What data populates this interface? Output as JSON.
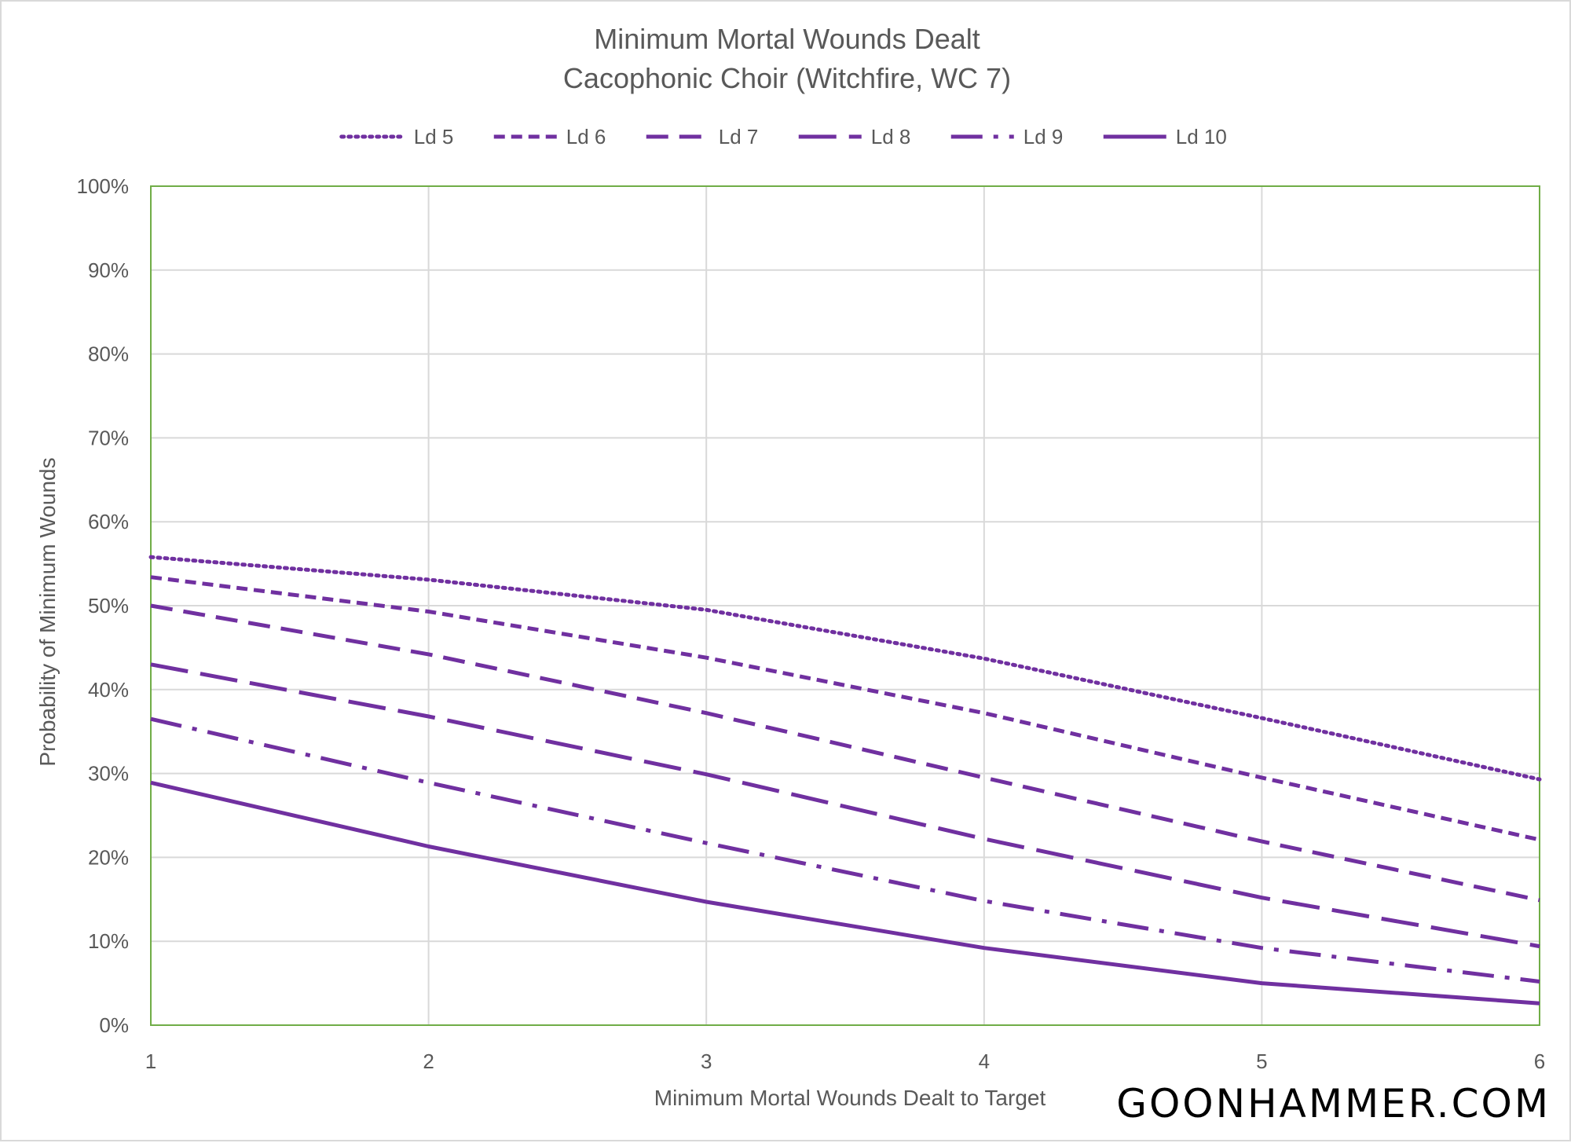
{
  "chart_data": {
    "type": "line",
    "title": "Minimum Mortal Wounds Dealt",
    "subtitle": "Cacophonic Choir (Witchfire, WC 7)",
    "xlabel": "Minimum Mortal Wounds Dealt to Target",
    "ylabel": "Probability of Minimum Wounds",
    "x": [
      1,
      2,
      3,
      4,
      5,
      6
    ],
    "x_tick_labels": [
      "1",
      "2",
      "3",
      "4",
      "5",
      "6"
    ],
    "xlim": [
      1,
      6
    ],
    "ylim": [
      0,
      1
    ],
    "y_tick_labels": [
      "0%",
      "10%",
      "20%",
      "30%",
      "40%",
      "50%",
      "60%",
      "70%",
      "80%",
      "90%",
      "100%"
    ],
    "grid": true,
    "legend_position": "top",
    "series": [
      {
        "name": "Ld 5",
        "dash": "dotted",
        "values": [
          0.558,
          0.531,
          0.495,
          0.437,
          0.366,
          0.293
        ]
      },
      {
        "name": "Ld 6",
        "dash": "short-dash",
        "values": [
          0.534,
          0.493,
          0.438,
          0.372,
          0.295,
          0.221
        ]
      },
      {
        "name": "Ld 7",
        "dash": "dash",
        "values": [
          0.5,
          0.442,
          0.372,
          0.295,
          0.219,
          0.149
        ]
      },
      {
        "name": "Ld 8",
        "dash": "long-dash",
        "values": [
          0.43,
          0.368,
          0.299,
          0.222,
          0.152,
          0.094
        ]
      },
      {
        "name": "Ld 9",
        "dash": "dash-dot",
        "values": [
          0.365,
          0.289,
          0.217,
          0.148,
          0.092,
          0.052
        ]
      },
      {
        "name": "Ld 10",
        "dash": "solid",
        "values": [
          0.289,
          0.213,
          0.147,
          0.092,
          0.05,
          0.026
        ]
      }
    ],
    "colors": {
      "series": "#7030a0",
      "grid": "#d9d9d9",
      "plot_border": "#70ad47",
      "text": "#595959"
    }
  },
  "watermark": "GOONHAMMER.COM"
}
